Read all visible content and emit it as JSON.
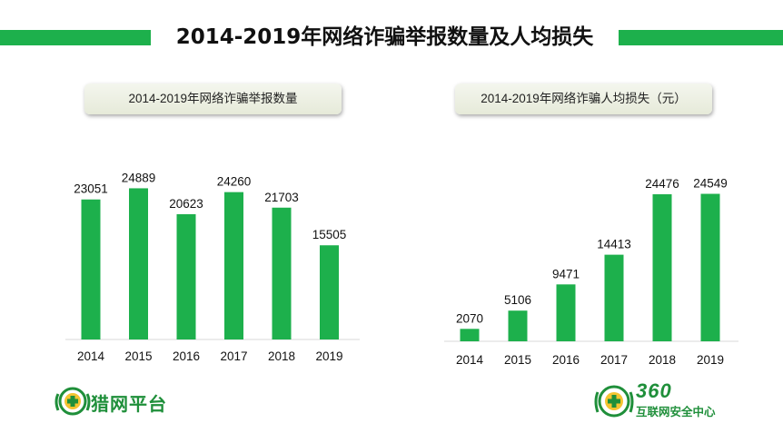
{
  "title": "2014-2019年网络诈骗举报数量及人均损失",
  "colors": {
    "bar": "#1db04c",
    "accent": "#1db04c"
  },
  "chart_data": [
    {
      "type": "bar",
      "title": "2014-2019年网络诈骗举报数量",
      "categories": [
        "2014",
        "2015",
        "2016",
        "2017",
        "2018",
        "2019"
      ],
      "values": [
        23051,
        24889,
        20623,
        24260,
        21703,
        15505
      ],
      "xlabel": "",
      "ylabel": "",
      "ylim": [
        0,
        26000
      ],
      "grid": false,
      "legend": "none"
    },
    {
      "type": "bar",
      "title": "2014-2019年网络诈骗人均损失（元）",
      "categories": [
        "2014",
        "2015",
        "2016",
        "2017",
        "2018",
        "2019"
      ],
      "values": [
        2070,
        5106,
        9471,
        14413,
        24476,
        24549
      ],
      "xlabel": "",
      "ylabel": "",
      "ylim": [
        0,
        27500
      ],
      "grid": false,
      "legend": "none"
    }
  ],
  "logos": {
    "left": {
      "name": "猎网平台"
    },
    "right": {
      "brand": "360",
      "subtitle": "互联网安全中心"
    }
  }
}
